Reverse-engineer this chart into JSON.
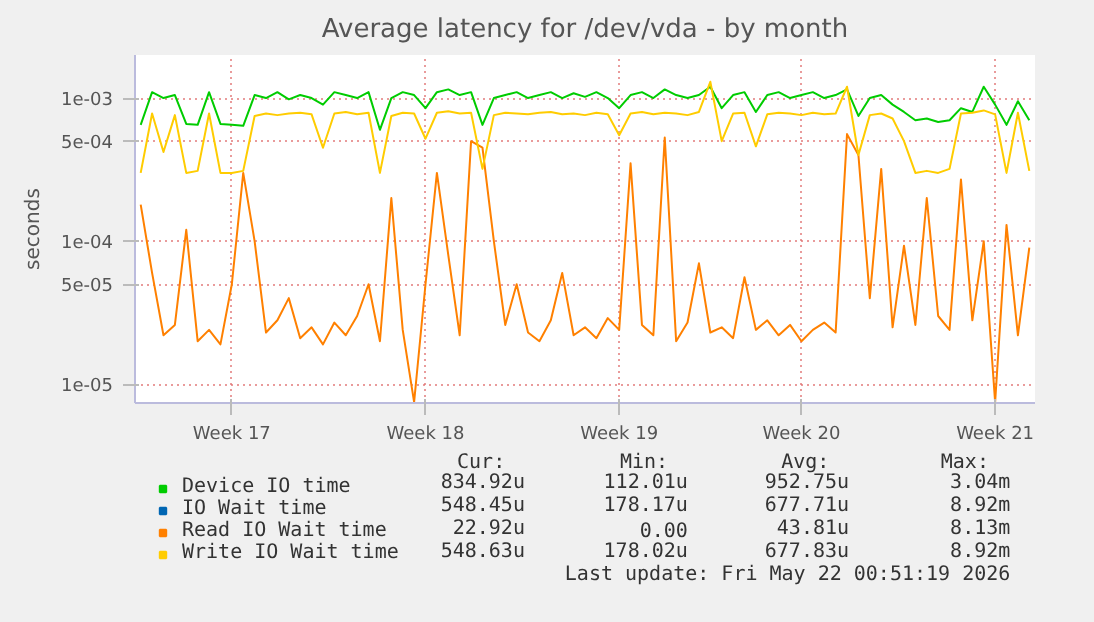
{
  "chart_data": {
    "type": "line",
    "title": "Average latency for /dev/vda - by month",
    "ylabel": "seconds",
    "log": true,
    "grid": true,
    "legend": "bottom",
    "categories": [
      null,
      null,
      null,
      null,
      null,
      null,
      null,
      null,
      "Week 17",
      null,
      null,
      null,
      null,
      null,
      null,
      null,
      null,
      null,
      null,
      null,
      null,
      null,
      null,
      null,
      null,
      "Week 18",
      null,
      null,
      null,
      null,
      null,
      null,
      null,
      null,
      null,
      null,
      null,
      null,
      null,
      null,
      null,
      null,
      "Week 19",
      null,
      null,
      null,
      null,
      null,
      null,
      null,
      null,
      null,
      null,
      null,
      null,
      null,
      null,
      null,
      "Week 20",
      null,
      null,
      null,
      null,
      null,
      null,
      null,
      null,
      null,
      null,
      null,
      null,
      null,
      null,
      null,
      null,
      "Week 21",
      null,
      null,
      null
    ],
    "ylim": [
      7.4e-06,
      0.002
    ],
    "yticks": [
      {
        "value": 1e-05,
        "label": "1e-05"
      },
      {
        "value": 5e-05,
        "label": "5e-05"
      },
      {
        "value": 0.0001,
        "label": "1e-04"
      },
      {
        "value": 0.0005,
        "label": "5e-04"
      },
      {
        "value": 0.001,
        "label": "1e-03"
      }
    ],
    "series": [
      {
        "name": "Device IO time",
        "color": "#00cc00",
        "values": [
          0.00065,
          0.0011,
          0.001,
          0.00105,
          0.00066,
          0.00065,
          0.0011,
          0.00066,
          0.00065,
          0.00064,
          0.00105,
          0.001,
          0.0011,
          0.00098,
          0.00105,
          0.001,
          0.0009,
          0.0011,
          0.00105,
          0.001,
          0.0011,
          0.0006,
          0.001,
          0.0011,
          0.00105,
          0.00085,
          0.0011,
          0.00115,
          0.00105,
          0.0011,
          0.00065,
          0.001,
          0.00105,
          0.0011,
          0.001,
          0.00105,
          0.0011,
          0.001,
          0.00108,
          0.00102,
          0.0011,
          0.001,
          0.00085,
          0.00105,
          0.0011,
          0.001,
          0.00115,
          0.00105,
          0.001,
          0.00105,
          0.0012,
          0.00085,
          0.00105,
          0.0011,
          0.0008,
          0.00105,
          0.0011,
          0.001,
          0.00105,
          0.0011,
          0.001,
          0.00105,
          0.00115,
          0.00075,
          0.001,
          0.00105,
          0.0009,
          0.0008,
          0.0007,
          0.00072,
          0.00068,
          0.0007,
          0.00085,
          0.0008,
          0.0012,
          0.0009,
          0.00065,
          0.00095,
          0.0007
        ]
      },
      {
        "name": "IO Wait time",
        "color": "#0066b3",
        "values": [
          null,
          null,
          null,
          null,
          null,
          null,
          null,
          null,
          null,
          null,
          null,
          null,
          null,
          null,
          null,
          null,
          null,
          null,
          null,
          null,
          null,
          null,
          null,
          null,
          null,
          null,
          null,
          null,
          null,
          null,
          null,
          null,
          null,
          null,
          null,
          null,
          null,
          null,
          null,
          null,
          null,
          null,
          null,
          null,
          null,
          null,
          null,
          null,
          null,
          null,
          null,
          null,
          null,
          null,
          null,
          null,
          null,
          null,
          null,
          null,
          null,
          null,
          null,
          null,
          null,
          null,
          null,
          null,
          null,
          null,
          null,
          null,
          null,
          null,
          null,
          null,
          null,
          null,
          null
        ]
      },
      {
        "name": "Read IO Wait time",
        "color": "#ff8000",
        "values": [
          0.00018,
          6e-05,
          2.2e-05,
          2.6e-05,
          0.00012,
          2e-05,
          2.4e-05,
          1.9e-05,
          5e-05,
          0.0003,
          0.0001,
          2.3e-05,
          2.8e-05,
          4e-05,
          2.1e-05,
          2.5e-05,
          1.9e-05,
          2.7e-05,
          2.2e-05,
          3e-05,
          5e-05,
          2e-05,
          0.0002,
          2.4e-05,
          7.5e-06,
          5e-05,
          0.0003,
          8e-05,
          2.2e-05,
          0.0005,
          0.00045,
          0.0001,
          2.6e-05,
          5e-05,
          2.3e-05,
          2e-05,
          2.8e-05,
          6e-05,
          2.2e-05,
          2.5e-05,
          2.1e-05,
          2.9e-05,
          2.4e-05,
          0.00035,
          2.6e-05,
          2.2e-05,
          0.00053,
          2e-05,
          2.7e-05,
          7e-05,
          2.3e-05,
          2.5e-05,
          2.1e-05,
          5.6e-05,
          2.4e-05,
          2.8e-05,
          2.2e-05,
          2.6e-05,
          2e-05,
          2.4e-05,
          2.7e-05,
          2.3e-05,
          0.00056,
          0.0004,
          4e-05,
          0.00032,
          2.5e-05,
          9.3e-05,
          2.6e-05,
          0.0002,
          3e-05,
          2.4e-05,
          0.00027,
          2.8e-05,
          0.0001,
          7.5e-06,
          0.00013,
          2.2e-05,
          9e-05
        ]
      },
      {
        "name": "Write IO Wait time",
        "color": "#ffcc00",
        "values": [
          0.0003,
          0.00078,
          0.00042,
          0.00076,
          0.0003,
          0.00031,
          0.00078,
          0.0003,
          0.0003,
          0.00031,
          0.00075,
          0.00078,
          0.00076,
          0.00078,
          0.00079,
          0.00077,
          0.00045,
          0.00078,
          0.0008,
          0.00077,
          0.00079,
          0.0003,
          0.00075,
          0.00079,
          0.00078,
          0.00052,
          0.00079,
          0.00081,
          0.00078,
          0.00079,
          0.00032,
          0.00076,
          0.00079,
          0.00078,
          0.00077,
          0.00079,
          0.0008,
          0.00077,
          0.00078,
          0.00076,
          0.00079,
          0.00077,
          0.00055,
          0.00078,
          0.0008,
          0.00077,
          0.00079,
          0.00078,
          0.00076,
          0.0008,
          0.0013,
          0.0005,
          0.00078,
          0.00079,
          0.00046,
          0.00077,
          0.00079,
          0.00078,
          0.00076,
          0.00079,
          0.00077,
          0.00078,
          0.0012,
          0.0004,
          0.00076,
          0.00078,
          0.00072,
          0.0005,
          0.0003,
          0.00031,
          0.0003,
          0.00032,
          0.00078,
          0.00079,
          0.00082,
          0.00077,
          0.0003,
          0.00079,
          0.00031
        ]
      }
    ],
    "annotations": [
      "Cur:",
      "Min:",
      "Avg:",
      "Max:",
      "834.92u",
      "112.01u",
      "952.75u",
      "3.04m",
      "548.45u",
      "178.17u",
      "677.71u",
      "8.92m",
      "22.92u",
      "0.00",
      "43.81u",
      "8.13m",
      "548.63u",
      "178.02u",
      "677.83u",
      "8.92m",
      "Last update: Fri May 22 00:51:19 2026"
    ]
  }
}
